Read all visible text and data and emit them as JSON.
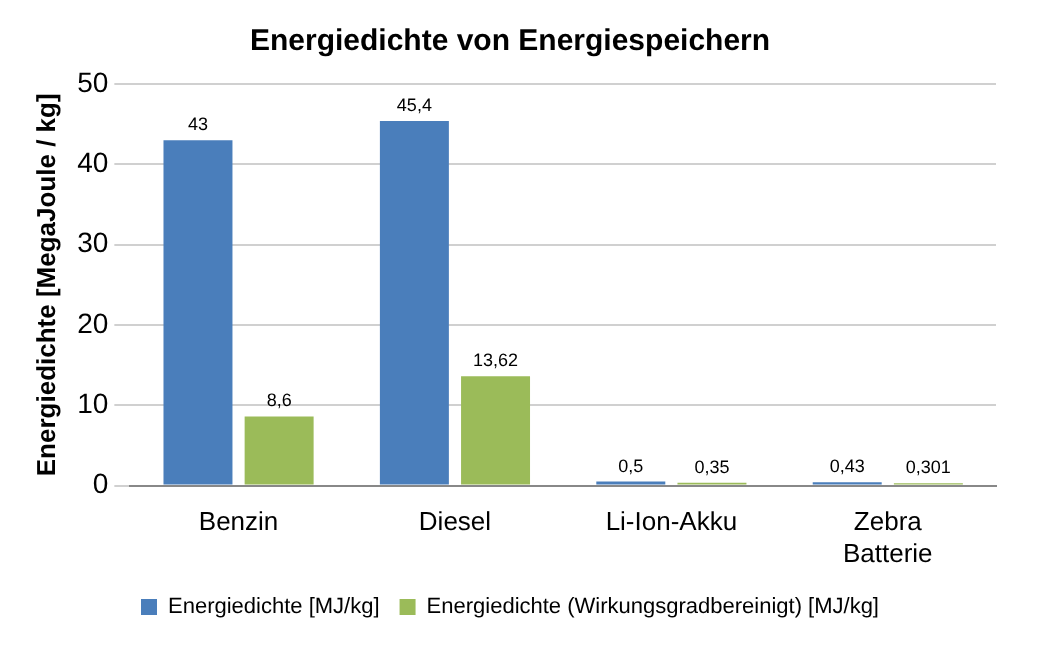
{
  "chart_data": {
    "type": "bar",
    "title": "Energiedichte von Energiespeichern",
    "ylabel": "Energiedichte [MegaJoule / kg]",
    "categories": [
      "Benzin",
      "Diesel",
      "Li-Ion-Akku",
      "Zebra Batterie"
    ],
    "series": [
      {
        "name": "Energiedichte [MJ/kg]",
        "color": "#4a7ebb",
        "values": [
          43,
          45.4,
          0.5,
          0.43
        ],
        "value_labels": [
          "43",
          "45,4",
          "0,5",
          "0,43"
        ]
      },
      {
        "name": "Energiedichte (Wirkungsgradbereinigt) [MJ/kg]",
        "color": "#9bbb59",
        "values": [
          8.6,
          13.62,
          0.35,
          0.301
        ],
        "value_labels": [
          "8,6",
          "13,62",
          "0,35",
          "0,301"
        ]
      }
    ],
    "ylim": [
      0,
      50
    ],
    "yticks": [
      0,
      10,
      20,
      30,
      40,
      50
    ],
    "grid": "y",
    "legend": "bottom"
  }
}
